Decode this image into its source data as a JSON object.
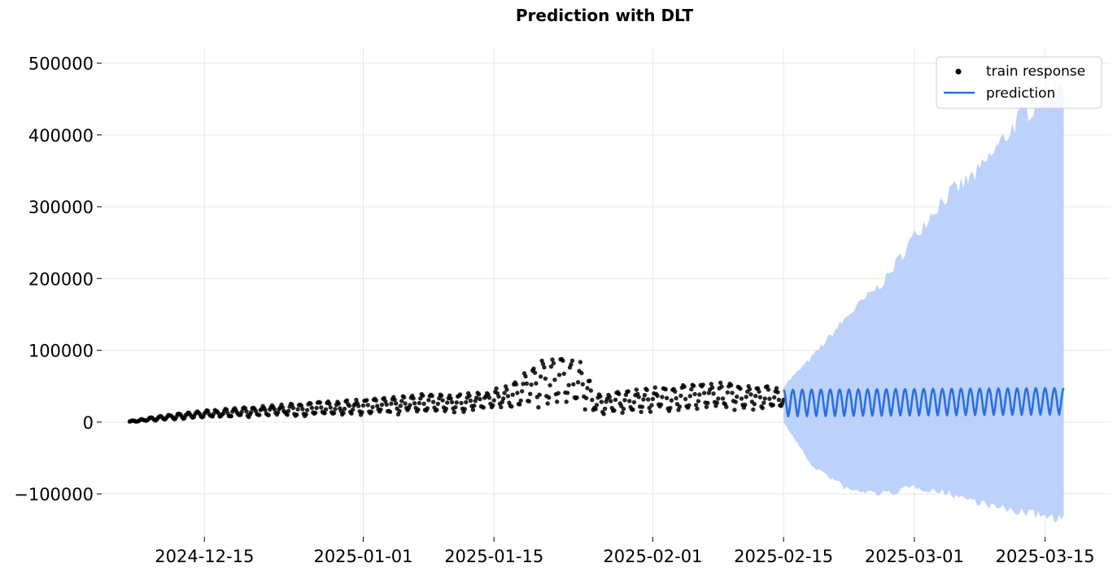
{
  "chart_data": {
    "type": "scatter+line",
    "title": "Prediction with DLT",
    "xlabel": "",
    "ylabel": "",
    "x_ticks": [
      "2024-12-15",
      "2025-01-01",
      "2025-01-15",
      "2025-02-01",
      "2025-02-15",
      "2025-03-01",
      "2025-03-15"
    ],
    "y_ticks": [
      -100000,
      0,
      100000,
      200000,
      300000,
      400000,
      500000
    ],
    "y_tick_labels": [
      "−100000",
      "0",
      "100000",
      "200000",
      "300000",
      "400000",
      "500000"
    ],
    "xlim": [
      "2024-12-04",
      "2025-03-22"
    ],
    "ylim": [
      -160000,
      520000
    ],
    "grid": true,
    "legend": {
      "position": "upper-right",
      "entries": [
        "train response",
        "prediction"
      ]
    },
    "colors": {
      "train": "#000000",
      "prediction": "#2a6fe0",
      "interval": "#bcd2fa"
    },
    "series": [
      {
        "name": "train response",
        "kind": "scatter",
        "period": "hourly",
        "x_range": [
          "2024-12-07",
          "2025-02-15"
        ],
        "daily_envelope": [
          {
            "date": "2024-12-07",
            "low": 0,
            "high": 1500
          },
          {
            "date": "2024-12-10",
            "low": 2000,
            "high": 8000
          },
          {
            "date": "2024-12-15",
            "low": 6000,
            "high": 16000
          },
          {
            "date": "2024-12-20",
            "low": 7000,
            "high": 21000
          },
          {
            "date": "2024-12-25",
            "low": 8000,
            "high": 26000
          },
          {
            "date": "2024-12-30",
            "low": 10000,
            "high": 30000
          },
          {
            "date": "2025-01-03",
            "low": 10000,
            "high": 33000
          },
          {
            "date": "2025-01-08",
            "low": 12000,
            "high": 40000
          },
          {
            "date": "2025-01-13",
            "low": 14000,
            "high": 40000
          },
          {
            "date": "2025-01-17",
            "low": 17000,
            "high": 52000
          },
          {
            "date": "2025-01-20",
            "low": 20000,
            "high": 90000
          },
          {
            "date": "2025-01-24",
            "low": 22000,
            "high": 90000
          },
          {
            "date": "2025-01-26",
            "low": 10000,
            "high": 38000
          },
          {
            "date": "2025-02-01",
            "low": 14000,
            "high": 48000
          },
          {
            "date": "2025-02-08",
            "low": 16000,
            "high": 55000
          },
          {
            "date": "2025-02-15",
            "low": 18000,
            "high": 48000
          }
        ]
      },
      {
        "name": "prediction",
        "kind": "line",
        "x_range": [
          "2025-02-15",
          "2025-03-17"
        ],
        "daily_cycle": {
          "low": 8000,
          "high": 45000
        },
        "interval_upper": [
          {
            "date": "2025-02-15",
            "value": 50000
          },
          {
            "date": "2025-02-18",
            "value": 90000
          },
          {
            "date": "2025-02-22",
            "value": 150000
          },
          {
            "date": "2025-02-26",
            "value": 200000
          },
          {
            "date": "2025-03-01",
            "value": 260000
          },
          {
            "date": "2025-03-04",
            "value": 310000
          },
          {
            "date": "2025-03-08",
            "value": 350000
          },
          {
            "date": "2025-03-12",
            "value": 420000
          },
          {
            "date": "2025-03-17",
            "value": 480000
          }
        ],
        "interval_lower": [
          {
            "date": "2025-02-15",
            "value": 0
          },
          {
            "date": "2025-02-18",
            "value": -60000
          },
          {
            "date": "2025-02-22",
            "value": -95000
          },
          {
            "date": "2025-02-26",
            "value": -100000
          },
          {
            "date": "2025-03-01",
            "value": -90000
          },
          {
            "date": "2025-03-05",
            "value": -100000
          },
          {
            "date": "2025-03-10",
            "value": -120000
          },
          {
            "date": "2025-03-17",
            "value": -135000
          }
        ]
      }
    ]
  }
}
